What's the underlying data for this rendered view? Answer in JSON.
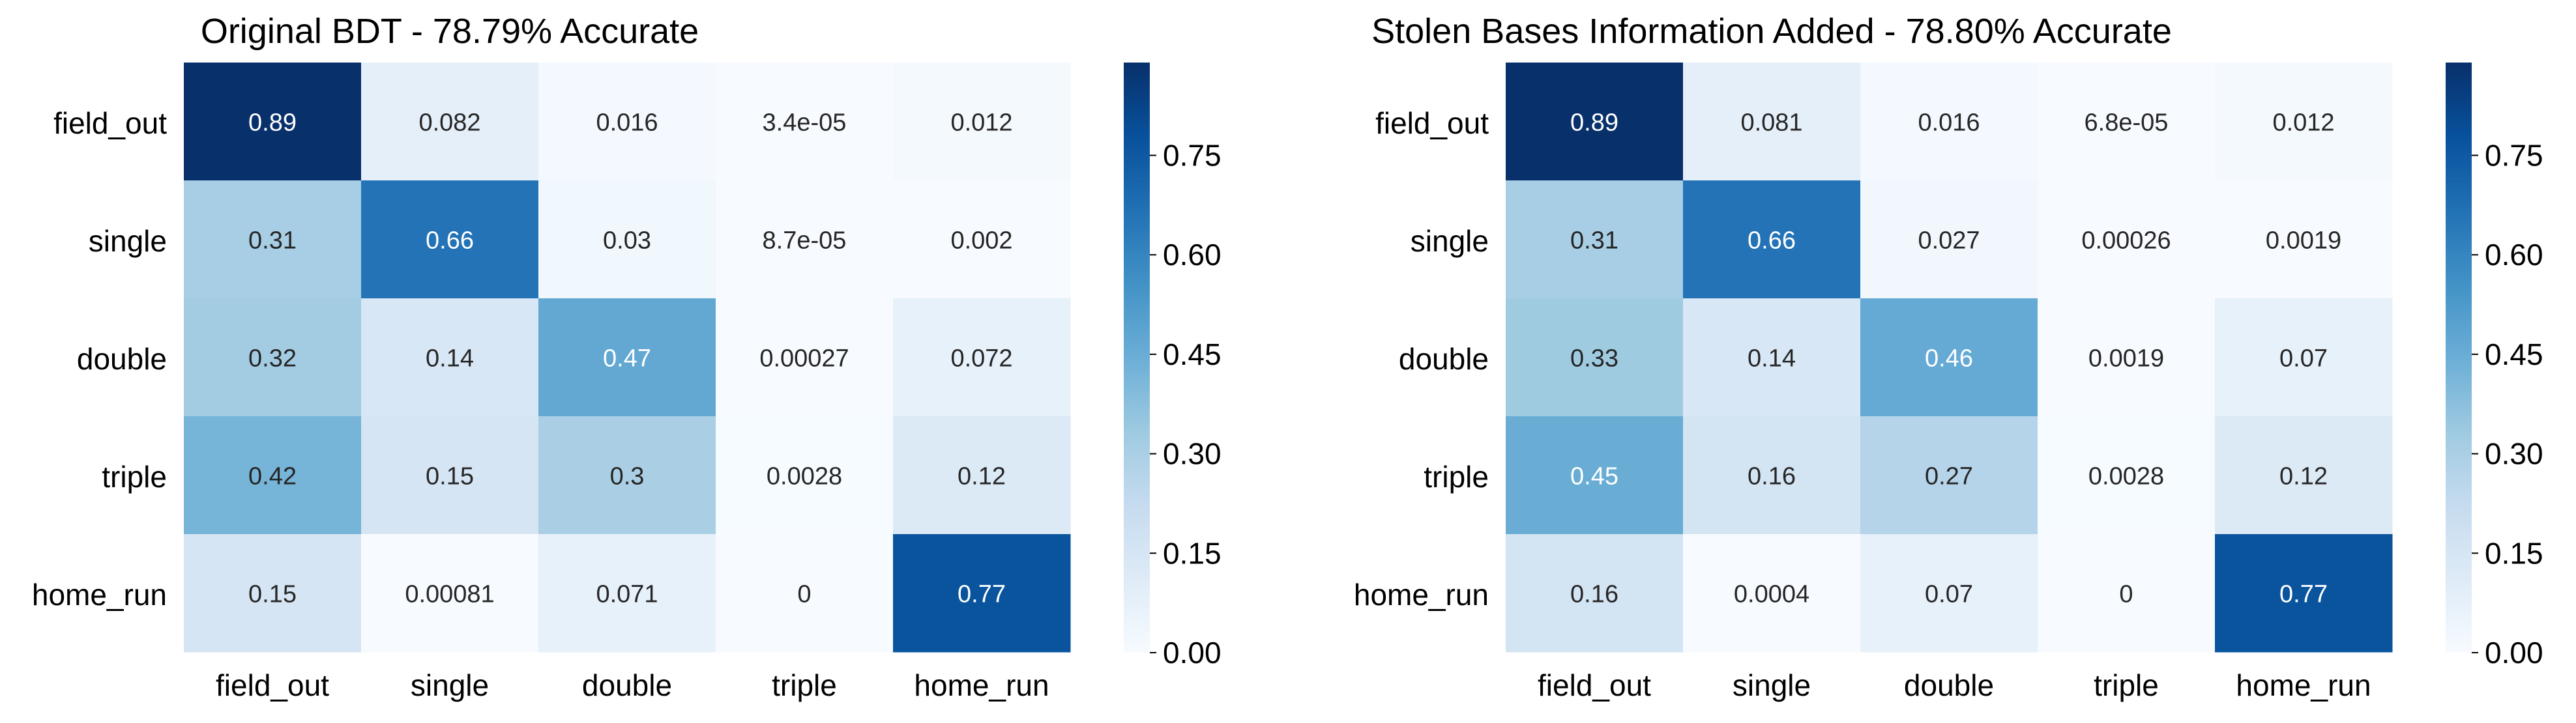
{
  "chart_data": [
    {
      "type": "heatmap",
      "title": "Original BDT - 78.79% Accurate",
      "xlabel": "",
      "ylabel": "",
      "x_categories": [
        "field_out",
        "single",
        "double",
        "triple",
        "home_run"
      ],
      "y_categories": [
        "field_out",
        "single",
        "double",
        "triple",
        "home_run"
      ],
      "values": [
        [
          0.89,
          0.082,
          0.016,
          3.4e-05,
          0.012
        ],
        [
          0.31,
          0.66,
          0.03,
          8.7e-05,
          0.002
        ],
        [
          0.32,
          0.14,
          0.47,
          0.00027,
          0.072
        ],
        [
          0.42,
          0.15,
          0.3,
          0.0028,
          0.12
        ],
        [
          0.15,
          0.00081,
          0.071,
          0,
          0.77
        ]
      ],
      "labels": [
        [
          "0.89",
          "0.082",
          "0.016",
          "3.4e-05",
          "0.012"
        ],
        [
          "0.31",
          "0.66",
          "0.03",
          "8.7e-05",
          "0.002"
        ],
        [
          "0.32",
          "0.14",
          "0.47",
          "0.00027",
          "0.072"
        ],
        [
          "0.42",
          "0.15",
          "0.3",
          "0.0028",
          "0.12"
        ],
        [
          "0.15",
          "0.00081",
          "0.071",
          "0",
          "0.77"
        ]
      ],
      "colormap": "Blues",
      "vmin": 0,
      "vmax": 0.89,
      "colorbar_ticks": [
        0.0,
        0.15,
        0.3,
        0.45,
        0.6,
        0.75
      ],
      "colorbar_tick_labels": [
        "0.00",
        "0.15",
        "0.30",
        "0.45",
        "0.60",
        "0.75"
      ]
    },
    {
      "type": "heatmap",
      "title": "Stolen Bases Information Added - 78.80% Accurate",
      "xlabel": "",
      "ylabel": "",
      "x_categories": [
        "field_out",
        "single",
        "double",
        "triple",
        "home_run"
      ],
      "y_categories": [
        "field_out",
        "single",
        "double",
        "triple",
        "home_run"
      ],
      "values": [
        [
          0.89,
          0.081,
          0.016,
          6.8e-05,
          0.012
        ],
        [
          0.31,
          0.66,
          0.027,
          0.00026,
          0.0019
        ],
        [
          0.33,
          0.14,
          0.46,
          0.0019,
          0.07
        ],
        [
          0.45,
          0.16,
          0.27,
          0.0028,
          0.12
        ],
        [
          0.16,
          0.0004,
          0.07,
          0,
          0.77
        ]
      ],
      "labels": [
        [
          "0.89",
          "0.081",
          "0.016",
          "6.8e-05",
          "0.012"
        ],
        [
          "0.31",
          "0.66",
          "0.027",
          "0.00026",
          "0.0019"
        ],
        [
          "0.33",
          "0.14",
          "0.46",
          "0.0019",
          "0.07"
        ],
        [
          "0.45",
          "0.16",
          "0.27",
          "0.0028",
          "0.12"
        ],
        [
          "0.16",
          "0.0004",
          "0.07",
          "0",
          "0.77"
        ]
      ],
      "colormap": "Blues",
      "vmin": 0,
      "vmax": 0.89,
      "colorbar_ticks": [
        0.0,
        0.15,
        0.3,
        0.45,
        0.6,
        0.75
      ],
      "colorbar_tick_labels": [
        "0.00",
        "0.15",
        "0.30",
        "0.45",
        "0.60",
        "0.75"
      ]
    }
  ]
}
